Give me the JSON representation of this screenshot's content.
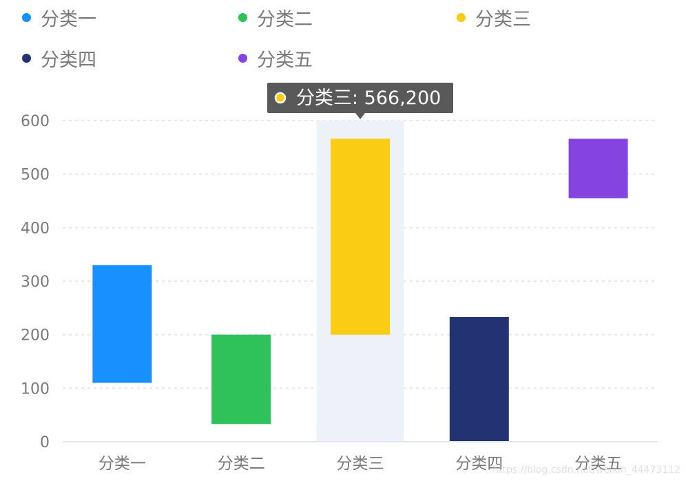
{
  "colors": {
    "axis_text": "#7a7a7a",
    "gridline": "#e3e6ea",
    "hover_bg": "#eef1f8",
    "tooltip_bg": "#595959",
    "tooltip_text": "#ffffff"
  },
  "legend": {
    "items": [
      {
        "label": "分类一",
        "color": "#1890ff"
      },
      {
        "label": "分类二",
        "color": "#2fc25b"
      },
      {
        "label": "分类三",
        "color": "#facc14"
      },
      {
        "label": "分类四",
        "color": "#223273"
      },
      {
        "label": "分类五",
        "color": "#8543e0"
      }
    ]
  },
  "tooltip": {
    "category": "分类三",
    "text": "分类三: 566,200",
    "color": "#facc14"
  },
  "chart_data": {
    "type": "bar",
    "subtype": "floating-range",
    "categories": [
      "分类一",
      "分类二",
      "分类三",
      "分类四",
      "分类五"
    ],
    "ranges": [
      [
        110,
        330
      ],
      [
        33,
        200
      ],
      [
        200,
        566
      ],
      [
        0,
        233
      ],
      [
        455,
        566
      ]
    ],
    "colors": [
      "#1890ff",
      "#2fc25b",
      "#facc14",
      "#223273",
      "#8543e0"
    ],
    "yticks": [
      0,
      100,
      200,
      300,
      400,
      500,
      600
    ],
    "ylim": [
      0,
      600
    ],
    "grid": true,
    "highlighted_category": "分类三",
    "legend_position": "top"
  },
  "watermark": "https://blog.csdn.net/weixin_44473112"
}
